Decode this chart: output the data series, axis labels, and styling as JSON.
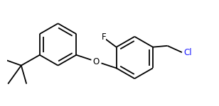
{
  "bg_color": "#ffffff",
  "bond_color": "#000000",
  "label_color_F": "#000000",
  "label_color_O": "#000000",
  "label_color_Cl": "#1a1aff",
  "line_width": 1.3,
  "dbo": 0.055,
  "font_size": 8.5,
  "figsize": [
    3.08,
    1.5
  ],
  "dpi": 100,
  "xlim": [
    -0.15,
    2.95
  ],
  "ylim": [
    -0.05,
    1.55
  ]
}
